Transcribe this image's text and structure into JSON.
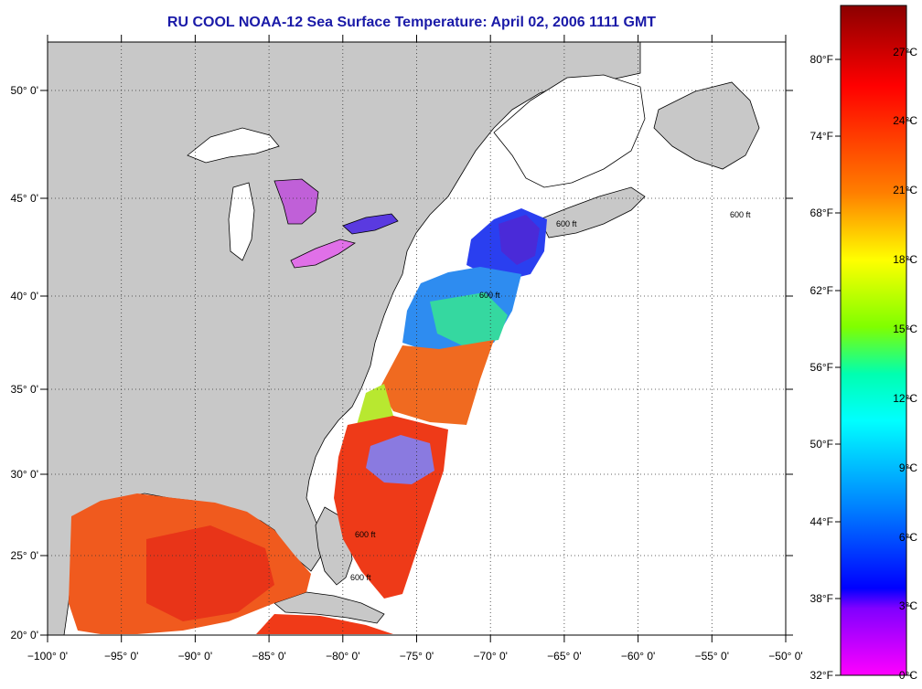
{
  "title": "RU COOL  NOAA-12  Sea Surface Temperature:  April 02, 2006 1111 GMT",
  "map": {
    "lon_range": [
      -100,
      -50
    ],
    "lat_range": [
      20,
      52.5
    ],
    "lon_ticks": [
      "−100° 0'",
      "−95° 0'",
      "−90° 0'",
      "−85° 0'",
      "−80° 0'",
      "−75° 0'",
      "−70° 0'",
      "−65° 0'",
      "−60° 0'",
      "−55° 0'",
      "−50° 0'"
    ],
    "lat_ticks": [
      "20° 0'",
      "25° 0'",
      "30° 0'",
      "35° 0'",
      "40° 0'",
      "45° 0'",
      "50° 0'"
    ],
    "gridlines": "dotted",
    "contour_label": "600 ft",
    "colors": {
      "land": "#c8c8c8",
      "no_data": "#ffffff",
      "coast": "#000000",
      "title": "#1a1aa8"
    }
  },
  "colorbar": {
    "fahrenheit_ticks": [
      "80°F",
      "74°F",
      "68°F",
      "62°F",
      "56°F",
      "50°F",
      "44°F",
      "38°F",
      "32°F"
    ],
    "celsius_ticks": [
      "27°C",
      "24°C",
      "21°C",
      "18°C",
      "15°C",
      "12°C",
      "9°C",
      "6°C",
      "3°C",
      "0°C"
    ],
    "stops": [
      "#8b0000",
      "#ff0000",
      "#ff7f00",
      "#ffff00",
      "#7fff00",
      "#00ffb0",
      "#00ffff",
      "#0080ff",
      "#0000ff",
      "#8000ff",
      "#ff00ff"
    ]
  }
}
